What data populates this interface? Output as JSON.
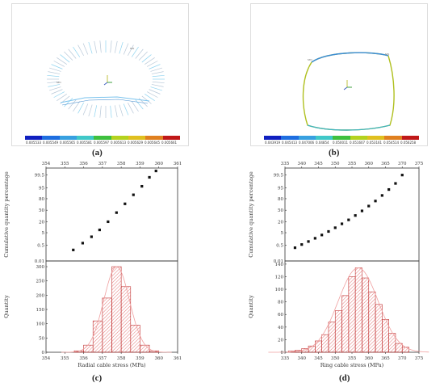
{
  "panels": {
    "a": {
      "caption": "(a)",
      "colorbar_labels": [
        "0.005533",
        "0.005549",
        "0.005565",
        "0.005581",
        "0.005597",
        "0.005613",
        "0.005629",
        "0.005645",
        "0.005661"
      ]
    },
    "b": {
      "caption": "(b)",
      "colorbar_labels": [
        "0.043919",
        "0.045413",
        "0.047006",
        "0.04854",
        "0.050011",
        "0.051607",
        "0.053161",
        "0.054514",
        "0.056258"
      ]
    },
    "c": {
      "caption": "(c)"
    },
    "d": {
      "caption": "(d)"
    }
  },
  "colorbar_colors": [
    "#1020c0",
    "#1e6ee0",
    "#38a0e0",
    "#40c8c8",
    "#3ec03e",
    "#b4d21e",
    "#e0c020",
    "#e08020",
    "#c01818"
  ],
  "chart_data": [
    {
      "id": "c",
      "type": "scatter",
      "subplot": "probability plot",
      "xlim": [
        354,
        361
      ],
      "xticks": [
        "354",
        "355",
        "356",
        "357",
        "358",
        "359",
        "360",
        "361"
      ],
      "ylabel": "Cumulative quantity percentage",
      "yticks": [
        "0.01",
        "0.5",
        "5",
        "20",
        "50",
        "80",
        "95",
        "99.5"
      ],
      "ytick_values": [
        0.01,
        0.5,
        5,
        20,
        50,
        80,
        95,
        99.5
      ],
      "x": [
        355.45,
        355.95,
        356.42,
        356.85,
        357.3,
        357.75,
        358.2,
        358.65,
        359.1,
        359.5,
        359.85
      ],
      "y": [
        0.18,
        0.8,
        2.6,
        7.5,
        20,
        43,
        68,
        87,
        96,
        99.2,
        99.8
      ]
    },
    {
      "id": "c",
      "type": "bar",
      "subplot": "histogram",
      "xlabel": "Radial cable stress (MPa)",
      "xlim": [
        354,
        361
      ],
      "xticks": [
        "354",
        "355",
        "356",
        "357",
        "358",
        "359",
        "360",
        "361"
      ],
      "ylabel": "Quantity",
      "ylim": [
        0,
        320
      ],
      "yticks": [
        "0",
        "50",
        "100",
        "150",
        "200",
        "250",
        "300"
      ],
      "bin_edges": [
        355.5,
        356,
        356.5,
        357,
        357.5,
        358,
        358.5,
        359,
        359.5,
        360
      ],
      "values": [
        5,
        25,
        110,
        190,
        300,
        230,
        95,
        25,
        5
      ]
    },
    {
      "id": "d",
      "type": "scatter",
      "subplot": "probability plot",
      "xlim": [
        335,
        375
      ],
      "xticks": [
        "335",
        "340",
        "345",
        "350",
        "355",
        "360",
        "365",
        "370",
        "375"
      ],
      "ylabel": "Cumulative quantity percentage",
      "yticks": [
        "0.01",
        "0.5",
        "5",
        "20",
        "50",
        "80",
        "95",
        "99.5"
      ],
      "ytick_values": [
        0.01,
        0.5,
        5,
        20,
        50,
        80,
        95,
        99.5
      ],
      "x": [
        338,
        340,
        342,
        344,
        346,
        348,
        350,
        352,
        354,
        356,
        358,
        360,
        362,
        364,
        366,
        368,
        370
      ],
      "y": [
        0.3,
        0.6,
        1.1,
        2.0,
        3.5,
        6,
        10,
        16,
        24,
        35,
        48,
        62,
        75,
        86,
        93.5,
        97.5,
        99.5
      ]
    },
    {
      "id": "d",
      "type": "bar",
      "subplot": "histogram",
      "xlabel": "Ring cable stress (MPa)",
      "xlim": [
        335,
        375
      ],
      "xticks": [
        "335",
        "340",
        "345",
        "350",
        "355",
        "360",
        "365",
        "370",
        "375"
      ],
      "ylabel": "Quantity",
      "ylim": [
        0,
        145
      ],
      "yticks": [
        "0",
        "20",
        "40",
        "60",
        "80",
        "100",
        "120",
        "140"
      ],
      "bin_edges": [
        336,
        338,
        340,
        342,
        344,
        346,
        348,
        350,
        352,
        354,
        356,
        358,
        360,
        362,
        364,
        366,
        368,
        370,
        372
      ],
      "values": [
        2,
        3,
        6,
        10,
        18,
        28,
        48,
        66,
        90,
        120,
        134,
        118,
        96,
        76,
        52,
        30,
        14,
        8
      ]
    }
  ]
}
